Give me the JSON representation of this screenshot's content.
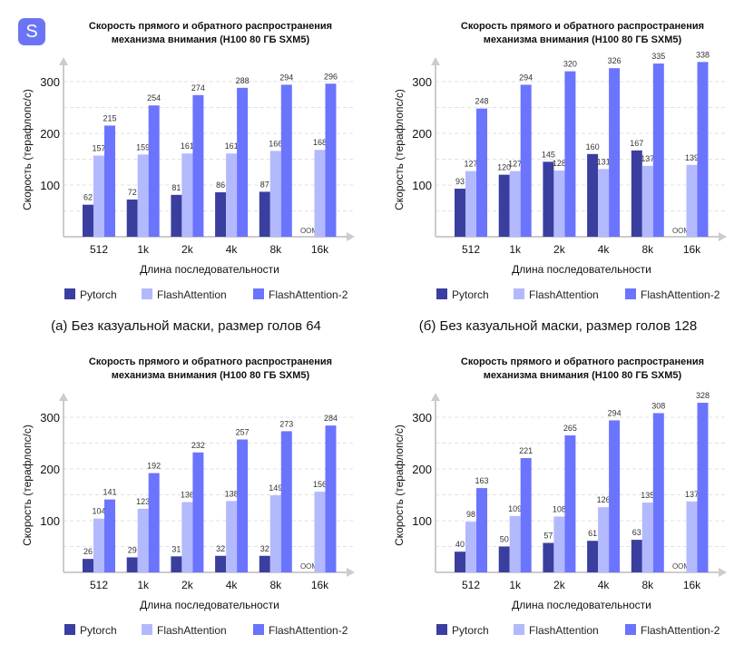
{
  "logo": {
    "letter": "S",
    "color": "#6b74f5"
  },
  "colors": {
    "Pytorch": "#3a3f9f",
    "FlashAttention": "#b3b9fd",
    "FlashAttention-2": "#6b74fd"
  },
  "chart_data": [
    {
      "type": "bar",
      "title": [
        "Скорость прямого и обратного распространения",
        "механизма внимания (H100 80 ГБ SXM5)"
      ],
      "xlabel": "Длина последовательности",
      "ylabel": "Скорость (терафлопс/с)",
      "categories": [
        "512",
        "1k",
        "2k",
        "4k",
        "8k",
        "16k"
      ],
      "yticks": [
        100,
        200,
        300
      ],
      "ylim": [
        0,
        340
      ],
      "grid": true,
      "legend": "bottom",
      "caption": "(а) Без казуальной маски, размер голов 64",
      "series": [
        {
          "name": "Pytorch",
          "values": [
            62,
            72,
            81,
            86,
            87,
            null
          ],
          "labels": [
            "62",
            "72",
            "81",
            "86",
            "87",
            "OOM"
          ]
        },
        {
          "name": "FlashAttention",
          "values": [
            157,
            159,
            161,
            161,
            166,
            168
          ],
          "labels": [
            "157",
            "159",
            "161",
            "161",
            "166",
            "168"
          ]
        },
        {
          "name": "FlashAttention-2",
          "values": [
            215,
            254,
            274,
            288,
            294,
            296
          ],
          "labels": [
            "215",
            "254",
            "274",
            "288",
            "294",
            "296"
          ]
        }
      ]
    },
    {
      "type": "bar",
      "title": [
        "Скорость прямого и обратного распространения",
        "механизма внимания (H100 80 ГБ SXM5)"
      ],
      "xlabel": "Длина последовательности",
      "ylabel": "Скорость (терафлопс/с)",
      "categories": [
        "512",
        "1k",
        "2k",
        "4k",
        "8k",
        "16k"
      ],
      "yticks": [
        100,
        200,
        300
      ],
      "ylim": [
        0,
        340
      ],
      "grid": true,
      "legend": "bottom",
      "caption": "(б) Без казуальной маски, размер голов 128",
      "series": [
        {
          "name": "Pytorch",
          "values": [
            93,
            120,
            145,
            160,
            167,
            null
          ],
          "labels": [
            "93",
            "120",
            "145",
            "160",
            "167",
            "OOM"
          ]
        },
        {
          "name": "FlashAttention",
          "values": [
            127,
            127,
            128,
            131,
            137,
            139
          ],
          "labels": [
            "127",
            "127",
            "128",
            "131",
            "137",
            "139"
          ]
        },
        {
          "name": "FlashAttention-2",
          "values": [
            248,
            294,
            320,
            326,
            335,
            338
          ],
          "labels": [
            "248",
            "294",
            "320",
            "326",
            "335",
            "338"
          ]
        }
      ]
    },
    {
      "type": "bar",
      "title": [
        "Скорость прямого и обратного распространения",
        "механизма внимания (H100 80 ГБ SXM5)"
      ],
      "xlabel": "Длина последовательности",
      "ylabel": "Скорость (терафлопс/с)",
      "categories": [
        "512",
        "1k",
        "2k",
        "4k",
        "8k",
        "16k"
      ],
      "yticks": [
        100,
        200,
        300
      ],
      "ylim": [
        0,
        340
      ],
      "grid": true,
      "legend": "bottom",
      "caption": "",
      "series": [
        {
          "name": "Pytorch",
          "values": [
            26,
            29,
            31,
            32,
            32,
            null
          ],
          "labels": [
            "26",
            "29",
            "31",
            "32",
            "32",
            "OOM"
          ]
        },
        {
          "name": "FlashAttention",
          "values": [
            104,
            123,
            136,
            138,
            149,
            156
          ],
          "labels": [
            "104",
            "123",
            "136",
            "138",
            "149",
            "156"
          ]
        },
        {
          "name": "FlashAttention-2",
          "values": [
            141,
            192,
            232,
            257,
            273,
            284
          ],
          "labels": [
            "141",
            "192",
            "232",
            "257",
            "273",
            "284"
          ]
        }
      ]
    },
    {
      "type": "bar",
      "title": [
        "Скорость прямого и обратного распространения",
        "механизма внимания (H100 80 ГБ SXM5)"
      ],
      "xlabel": "Длина последовательности",
      "ylabel": "Скорость (терафлопс/с)",
      "categories": [
        "512",
        "1k",
        "2k",
        "4k",
        "8k",
        "16k"
      ],
      "yticks": [
        100,
        200,
        300
      ],
      "ylim": [
        0,
        340
      ],
      "grid": true,
      "legend": "bottom",
      "caption": "",
      "series": [
        {
          "name": "Pytorch",
          "values": [
            40,
            50,
            57,
            61,
            63,
            null
          ],
          "labels": [
            "40",
            "50",
            "57",
            "61",
            "63",
            "OOM"
          ]
        },
        {
          "name": "FlashAttention",
          "values": [
            98,
            109,
            108,
            126,
            135,
            137
          ],
          "labels": [
            "98",
            "109",
            "108",
            "126",
            "135",
            "137"
          ]
        },
        {
          "name": "FlashAttention-2",
          "values": [
            163,
            221,
            265,
            294,
            308,
            328
          ],
          "labels": [
            "163",
            "221",
            "265",
            "294",
            "308",
            "328"
          ]
        }
      ]
    }
  ]
}
